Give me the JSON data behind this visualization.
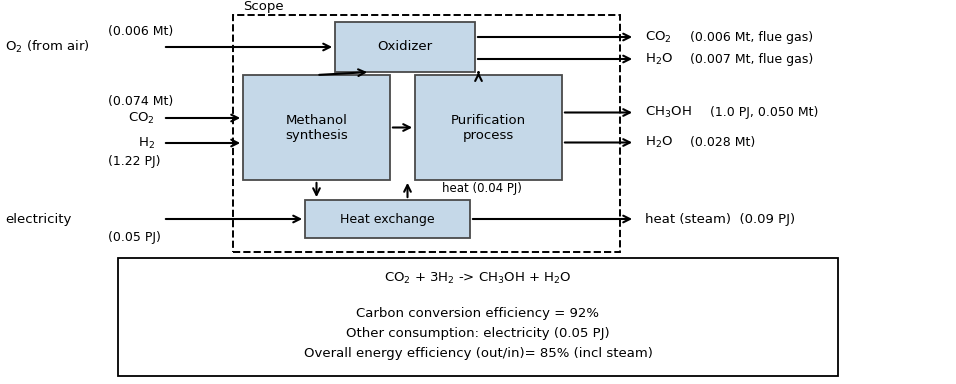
{
  "fig_width": 9.56,
  "fig_height": 3.84,
  "bg_color": "#ffffff",
  "box_fill": "#c5d8e8",
  "box_edge": "#4a4a4a",
  "scope_label": "Scope",
  "info_box": {
    "line1": "CO$_2$ + 3H$_2$ -> CH$_3$OH + H$_2$O",
    "line2": "Carbon conversion efficiency = 92%",
    "line3": "Other consumption: electricity (0.05 PJ)",
    "line4": "Overall energy efficiency (out/in)= 85% (incl steam)"
  }
}
